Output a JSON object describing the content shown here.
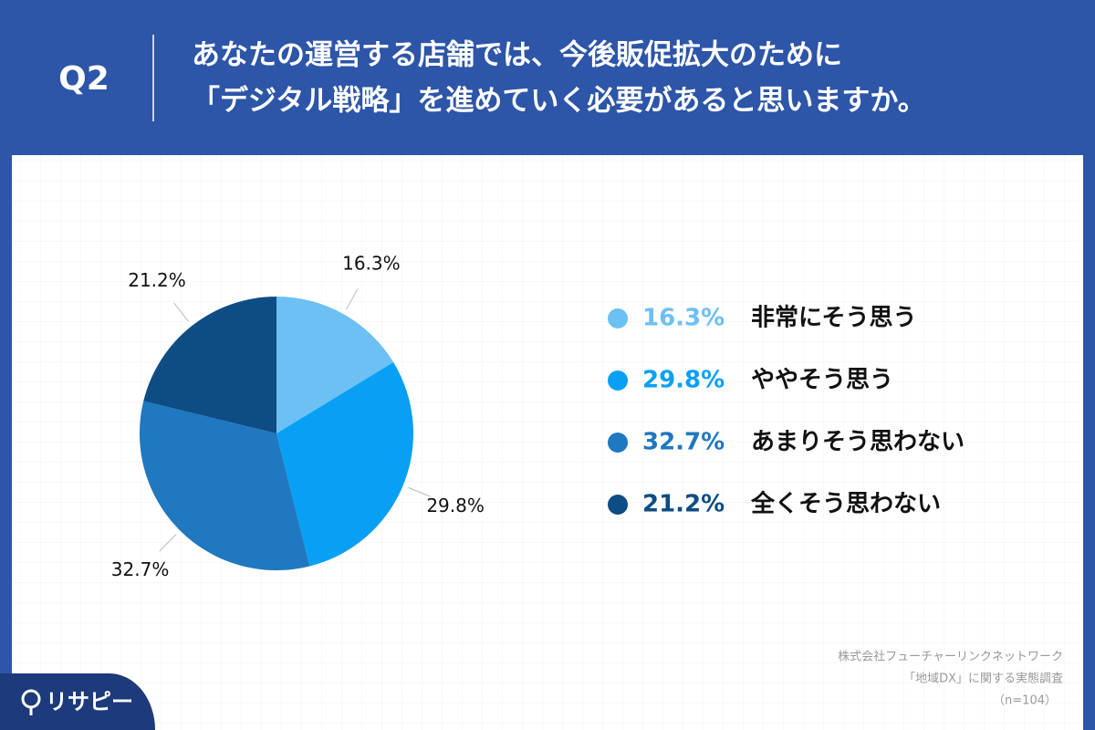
{
  "question": "Q2",
  "source": [
    "株式会社フューチャーリンクネットワーク",
    "「地域DX」に関する実態調査",
    "（n=104）"
  ],
  "logo": "リサピー",
  "chart_data": {
    "type": "pie",
    "title": [
      "あなたの運営する店舗では、今後販促拡大のために",
      "「デジタル戦略」を進めていく必要があると思いますか。"
    ],
    "categories": [
      "非常にそう思う",
      "ややそう思う",
      "あまりそう思わない",
      "全くそう思わない"
    ],
    "values": [
      16.3,
      29.8,
      32.7,
      21.2
    ],
    "value_labels": [
      "16.3%",
      "29.8%",
      "32.7%",
      "21.2%"
    ],
    "colors": [
      "#6cc0f4",
      "#08a0f4",
      "#1f78c0",
      "#0e4c84"
    ],
    "legend": "right"
  }
}
